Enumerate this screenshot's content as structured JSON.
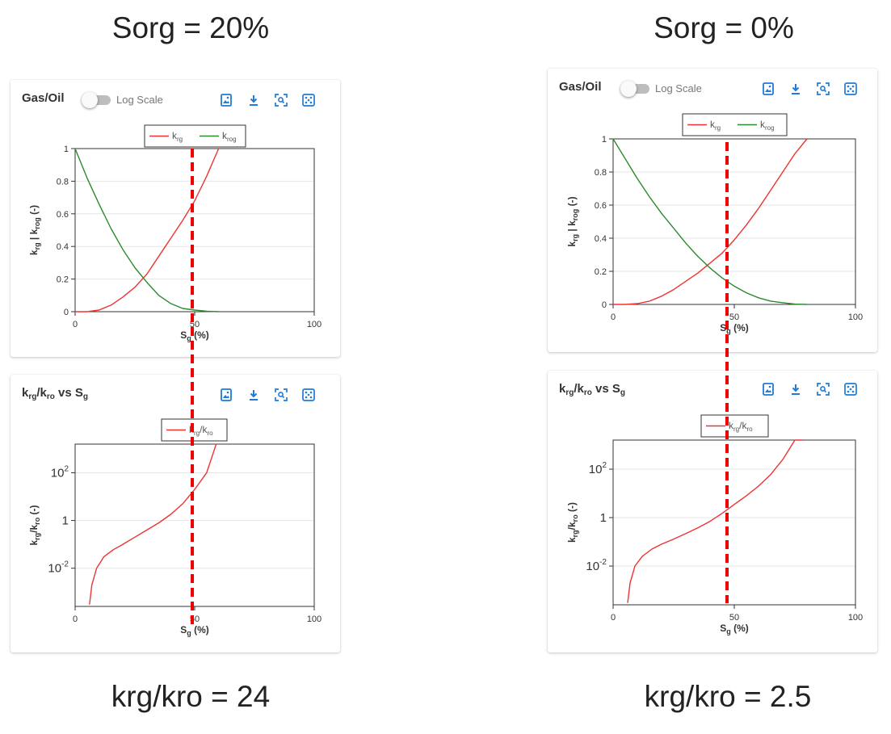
{
  "headings": {
    "left": "Sorg = 20%",
    "right": "Sorg = 0%"
  },
  "footers": {
    "left": "krg/kro = 24",
    "right": "krg/kro = 2.5"
  },
  "cards": {
    "gas_oil_title": "Gas/Oil",
    "log_scale_label": "Log Scale",
    "ratio_title": "krg/kro vs Sg",
    "toolbar_icons": [
      "image-export-icon",
      "download-icon",
      "zoom-select-icon",
      "reset-view-icon"
    ]
  },
  "colors": {
    "krg": "#ee3333",
    "krog": "#2b8a2b",
    "marker": "#ee0000",
    "icon": "#1f7bd6"
  },
  "chart_data": [
    {
      "panel": "left-relperm",
      "type": "line",
      "x": [
        0,
        5,
        10,
        15,
        20,
        25,
        30,
        35,
        40,
        45,
        50,
        55,
        60,
        65,
        70,
        75,
        80,
        85,
        90,
        95,
        100
      ],
      "series": [
        {
          "name": "krg",
          "values": [
            0,
            0,
            0.01,
            0.04,
            0.09,
            0.15,
            0.23,
            0.34,
            0.45,
            0.56,
            0.68,
            0.83,
            1.0,
            null,
            null,
            null,
            null,
            null,
            null,
            null,
            null
          ]
        },
        {
          "name": "krog",
          "values": [
            1.0,
            0.82,
            0.66,
            0.51,
            0.38,
            0.27,
            0.18,
            0.1,
            0.05,
            0.02,
            0.01,
            0.003,
            0,
            null,
            null,
            null,
            null,
            null,
            null,
            null,
            null
          ]
        }
      ],
      "xlabel": "Sg (%)",
      "ylabel": "krg | krog (-)",
      "xlim": [
        0,
        100
      ],
      "ylim": [
        0,
        1
      ],
      "yticks": [
        "0",
        "0.2",
        "0.4",
        "0.6",
        "0.8",
        "1"
      ],
      "xticks": [
        "0",
        "50",
        "100"
      ],
      "legend": "top-center",
      "grid": true,
      "marker_x": 49
    },
    {
      "panel": "left-ratio",
      "type": "line",
      "x": [
        6,
        7,
        9,
        12,
        16,
        20,
        25,
        30,
        35,
        40,
        45,
        50,
        55,
        58,
        59
      ],
      "series": [
        {
          "name": "krg/kro",
          "values": [
            0.0003,
            0.002,
            0.01,
            0.03,
            0.06,
            0.1,
            0.2,
            0.4,
            0.8,
            1.8,
            5,
            20,
            100,
            800,
            5000
          ]
        }
      ],
      "xlabel": "Sg (%)",
      "ylabel": "krg/kro (-)",
      "xlim": [
        0,
        100
      ],
      "yscale": "log",
      "ylim_log10": [
        -3.6,
        3.2
      ],
      "yticks": [
        "10-2",
        "1",
        "102"
      ],
      "xticks": [
        "0",
        "50",
        "100"
      ],
      "legend": "top-center",
      "grid": true,
      "marker_x": 49
    },
    {
      "panel": "right-relperm",
      "type": "line",
      "x": [
        0,
        5,
        10,
        15,
        20,
        25,
        30,
        35,
        40,
        45,
        50,
        55,
        60,
        65,
        70,
        75,
        80,
        85,
        90,
        95,
        100
      ],
      "series": [
        {
          "name": "krg",
          "values": [
            0,
            0,
            0.005,
            0.02,
            0.05,
            0.09,
            0.14,
            0.19,
            0.25,
            0.31,
            0.39,
            0.48,
            0.58,
            0.69,
            0.8,
            0.91,
            1.0,
            null,
            null,
            null,
            null
          ]
        },
        {
          "name": "krog",
          "values": [
            1.0,
            0.88,
            0.76,
            0.65,
            0.55,
            0.46,
            0.37,
            0.29,
            0.22,
            0.16,
            0.11,
            0.07,
            0.04,
            0.02,
            0.01,
            0.002,
            0,
            null,
            null,
            null,
            null
          ]
        }
      ],
      "xlabel": "Sg (%)",
      "ylabel": "krg | krog (-)",
      "xlim": [
        0,
        100
      ],
      "ylim": [
        0,
        1
      ],
      "yticks": [
        "0",
        "0.2",
        "0.4",
        "0.6",
        "0.8",
        "1"
      ],
      "xticks": [
        "0",
        "50",
        "100"
      ],
      "legend": "top-center",
      "grid": true,
      "marker_x": 47
    },
    {
      "panel": "right-ratio",
      "type": "line",
      "x": [
        6,
        7,
        9,
        12,
        16,
        20,
        25,
        30,
        35,
        40,
        45,
        50,
        55,
        60,
        65,
        70,
        75,
        77,
        78
      ],
      "series": [
        {
          "name": "krg/kro",
          "values": [
            0.0003,
            0.002,
            0.01,
            0.025,
            0.05,
            0.08,
            0.13,
            0.22,
            0.38,
            0.7,
            1.5,
            3.5,
            8,
            20,
            60,
            250,
            1800,
            6000,
            20000
          ]
        }
      ],
      "xlabel": "Sg (%)",
      "ylabel": "krg/kro (-)",
      "xlim": [
        0,
        100
      ],
      "yscale": "log",
      "ylim_log10": [
        -3.6,
        3.2
      ],
      "yticks": [
        "10-2",
        "1",
        "102"
      ],
      "xticks": [
        "0",
        "50",
        "100"
      ],
      "legend": "top-center",
      "grid": true,
      "marker_x": 47
    }
  ]
}
